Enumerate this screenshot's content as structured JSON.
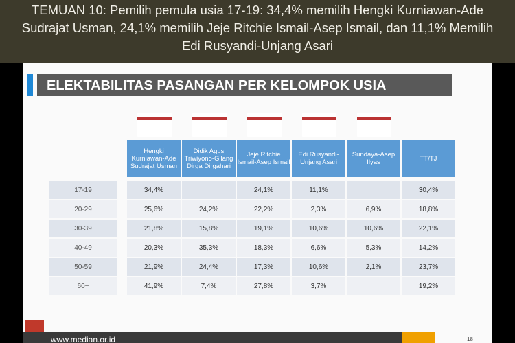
{
  "header": {
    "title": "TEMUAN 10: Pemilih pemula usia 17-19: 34,4% memilih Hengki Kurniawan-Ade Sudrajat Usman, 24,1% memilih Jeje Ritchie Ismail-Asep Ismail, dan 11,1% Memilih Edi Rusyandi-Unjang Asari"
  },
  "banner": {
    "title": "ELEKTABILITAS PASANGAN PER KELOMPOK USIA"
  },
  "table": {
    "columns": [
      "Hengki Kurniawan-Ade Sudrajat Usman",
      "Didik Agus Triwiyono-Gilang Dirga Dirgahari",
      "Jeje Ritchie Ismail-Asep Ismail",
      "Edi Rusyandi-Unjang Asari",
      "Sundaya-Asep Ilyas",
      "TT/TJ"
    ],
    "rows": [
      {
        "label": "17-19",
        "cells": [
          "34,4%",
          null,
          "24,1%",
          "11,1%",
          null,
          "30,4%"
        ]
      },
      {
        "label": "20-29",
        "cells": [
          "25,6%",
          "24,2%",
          "22,2%",
          "2,3%",
          "6,9%",
          "18,8%"
        ]
      },
      {
        "label": "30-39",
        "cells": [
          "21,8%",
          "15,8%",
          "19,1%",
          "10,6%",
          "10,6%",
          "22,1%"
        ]
      },
      {
        "label": "40-49",
        "cells": [
          "20,3%",
          "35,3%",
          "18,3%",
          "6,6%",
          "5,3%",
          "14,2%"
        ]
      },
      {
        "label": "50-59",
        "cells": [
          "21,9%",
          "24,4%",
          "17,3%",
          "10,6%",
          "2,1%",
          "23,7%"
        ]
      },
      {
        "label": "60+",
        "cells": [
          "41,9%",
          "7,4%",
          "27,8%",
          "3,7%",
          null,
          "19,2%"
        ]
      }
    ]
  },
  "footer": {
    "url": "www.median.or.id",
    "page": "18"
  }
}
